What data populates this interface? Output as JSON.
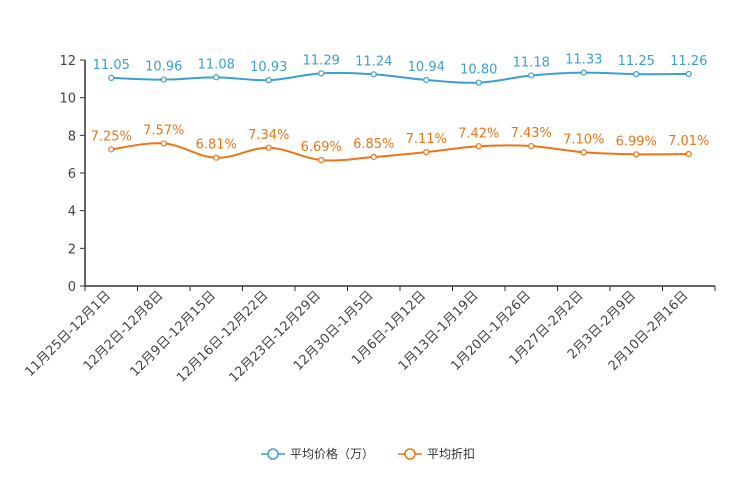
{
  "chart_data": {
    "type": "line",
    "categories": [
      "11月25日-12月1日",
      "12月2日-12月8日",
      "12月9日-12月15日",
      "12月16日-12月22日",
      "12月23日-12月29日",
      "12月30日-1月5日",
      "1月6日-1月12日",
      "1月13日-1月19日",
      "1月20日-1月26日",
      "1月27日-2月2日",
      "2月3日-2月9日",
      "2月10日-2月16日"
    ],
    "series": [
      {
        "name": "平均价格（万）",
        "color": "#3b9fd1",
        "values": [
          11.05,
          10.96,
          11.08,
          10.93,
          11.29,
          11.24,
          10.94,
          10.8,
          11.18,
          11.33,
          11.25,
          11.26
        ],
        "labels": [
          "11.05",
          "10.96",
          "11.08",
          "10.93",
          "11.29",
          "11.24",
          "10.94",
          "10.80",
          "11.18",
          "11.33",
          "11.25",
          "11.26"
        ]
      },
      {
        "name": "平均折扣",
        "color": "#f07415",
        "values": [
          7.25,
          7.57,
          6.81,
          7.34,
          6.69,
          6.85,
          7.11,
          7.42,
          7.43,
          7.1,
          6.99,
          7.01
        ],
        "labels": [
          "7.25%",
          "7.57%",
          "6.81%",
          "7.34%",
          "6.69%",
          "6.85%",
          "7.11%",
          "7.42%",
          "7.43%",
          "7.10%",
          "6.99%",
          "7.01%"
        ]
      }
    ],
    "y_ticks": [
      "0",
      "2",
      "4",
      "6",
      "8",
      "10",
      "12"
    ],
    "ylim": [
      0,
      12
    ],
    "title": "",
    "xlabel": "",
    "ylabel": "",
    "legend_position": "bottom-center",
    "grid": false
  }
}
